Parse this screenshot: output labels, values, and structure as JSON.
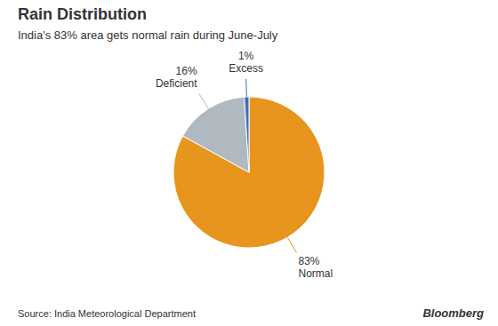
{
  "chart_data": {
    "type": "pie",
    "title": "Rain Distribution",
    "subtitle": "India's 83% area gets normal rain during June-July",
    "categories": [
      "Normal",
      "Deficient",
      "Excess"
    ],
    "values": [
      83,
      16,
      1
    ],
    "value_labels": [
      "83%",
      "16%",
      "1%"
    ],
    "colors": [
      "#E8951E",
      "#B0B8C0",
      "#3A6FBF"
    ],
    "data_labels": true,
    "annotations": [
      "Source: India Meteorological Department",
      "Bloomberg"
    ]
  }
}
